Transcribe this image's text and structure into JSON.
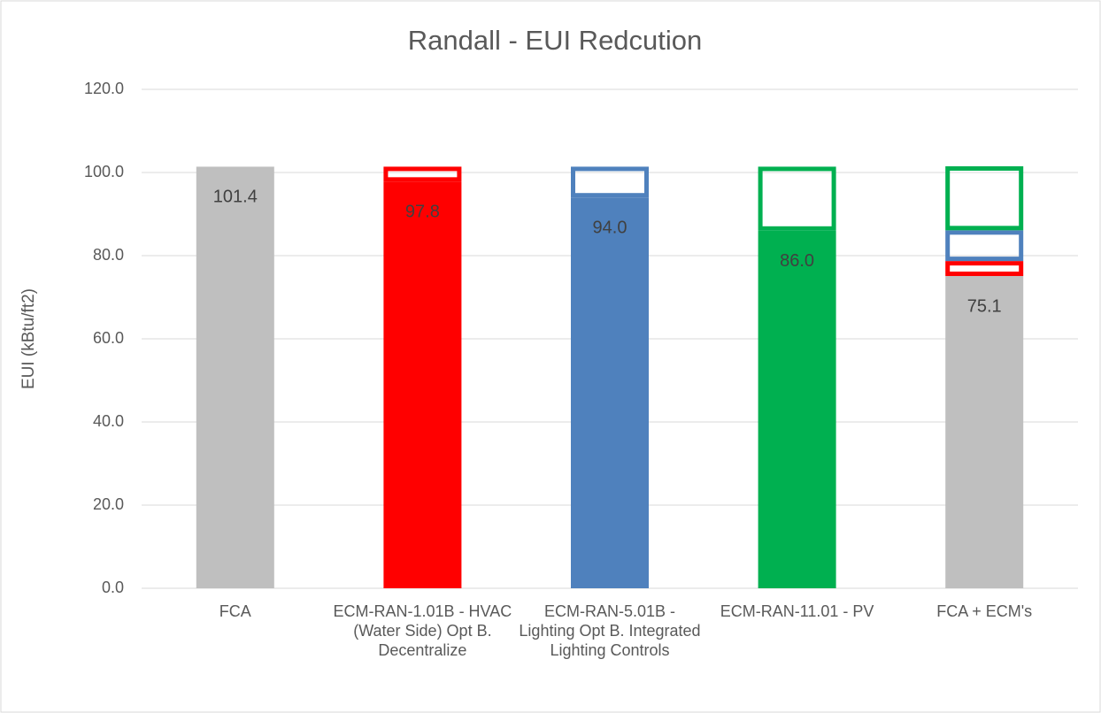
{
  "chart_data": {
    "type": "bar",
    "title": "Randall - EUI Redcution",
    "ylabel": "EUI (kBtu/ft2)",
    "categories": [
      "FCA",
      "ECM-RAN-1.01B - HVAC (Water Side) Opt B. Decentralize",
      "ECM-RAN-5.01B - Lighting Opt B. Integrated Lighting Controls",
      "ECM-RAN-11.01 - PV",
      "FCA + ECM's"
    ],
    "series": [
      {
        "colors": [
          "#bfbfbf",
          "#ff0000",
          "#4f81bd",
          "#00b050",
          "#bfbfbf"
        ],
        "values": [
          101.4,
          97.8,
          94.0,
          86.0,
          75.1
        ],
        "value_labels": [
          "101.4",
          "97.8",
          "94.0",
          "86.0",
          "75.1"
        ]
      },
      {
        "color": "#ff0000",
        "style": "outline",
        "values": [
          null,
          3.6,
          null,
          null,
          3.6
        ]
      },
      {
        "color": "#4f81bd",
        "style": "outline",
        "values": [
          null,
          null,
          7.4,
          null,
          7.4
        ]
      },
      {
        "color": "#00b050",
        "style": "outline",
        "values": [
          null,
          null,
          null,
          15.4,
          15.4
        ]
      }
    ],
    "stacked": true,
    "ylim": [
      0,
      120
    ],
    "yticks": [
      {
        "value": 0,
        "label": "0.0"
      },
      {
        "value": 20,
        "label": "20.0"
      },
      {
        "value": 40,
        "label": "40.0"
      },
      {
        "value": 60,
        "label": "60.0"
      },
      {
        "value": 80,
        "label": "80.0"
      },
      {
        "value": 100,
        "label": "100.0"
      },
      {
        "value": 120,
        "label": "120.0"
      }
    ],
    "grid": true
  }
}
